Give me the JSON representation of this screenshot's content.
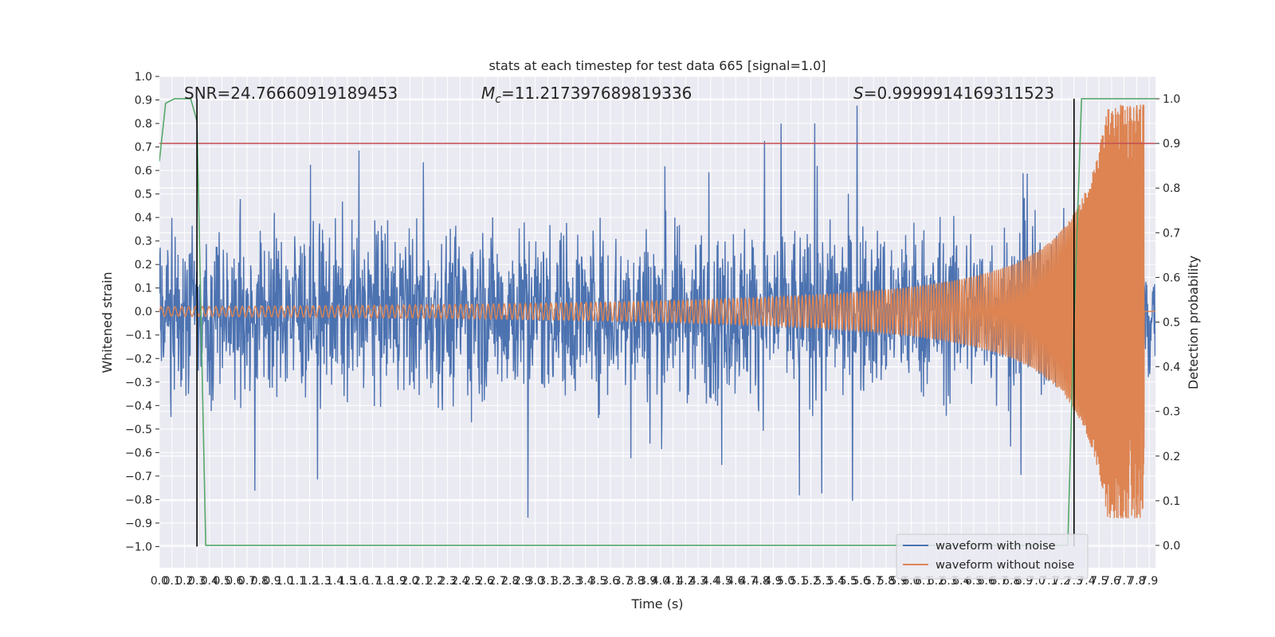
{
  "chart_data": {
    "type": "line",
    "title": "stats at each timestep for test data 665 [signal=1.0]",
    "xlabel": "Time (s)",
    "ylabel": "Whitened strain",
    "y2label": "Detection probability",
    "xlim": [
      0.0,
      7.95
    ],
    "ylim": [
      -1.09,
      1.0
    ],
    "y2lim": [
      -0.05,
      1.05
    ],
    "x_tick_step": 0.1,
    "x_tick_count": 80,
    "y_ticks": [
      "1.0",
      "0.9",
      "0.8",
      "0.7",
      "0.6",
      "0.5",
      "0.4",
      "0.3",
      "0.2",
      "0.1",
      "0.0",
      "−0.1",
      "−0.2",
      "−0.3",
      "−0.4",
      "−0.5",
      "−0.6",
      "−0.7",
      "−0.8",
      "−0.9",
      "−1.0"
    ],
    "y_tick_values": [
      1.0,
      0.9,
      0.8,
      0.7,
      0.6,
      0.5,
      0.4,
      0.3,
      0.2,
      0.1,
      0.0,
      -0.1,
      -0.2,
      -0.3,
      -0.4,
      -0.5,
      -0.6,
      -0.7,
      -0.8,
      -0.9,
      -1.0
    ],
    "y2_ticks": [
      "1.0",
      "0.9",
      "0.8",
      "0.7",
      "0.6",
      "0.5",
      "0.4",
      "0.3",
      "0.2",
      "0.1",
      "0.0"
    ],
    "y2_tick_values": [
      1.0,
      0.9,
      0.8,
      0.7,
      0.6,
      0.5,
      0.4,
      0.3,
      0.2,
      0.1,
      0.0
    ],
    "annotations": {
      "snr": "SNR=24.76660919189453",
      "mc_symbol": "M",
      "mc_sub": "c",
      "mc_value": "=11.217397689819336",
      "s_symbol": "S",
      "s_value": "=0.9999914169311523"
    },
    "series": [
      {
        "name": "waveform with noise",
        "color": "#4c72b0",
        "noise_envelope": 0.42,
        "peak_abs": 0.98
      },
      {
        "name": "waveform without noise",
        "color": "#dd8452",
        "start_amplitude": 0.02,
        "peak_amplitude": 0.88,
        "merger_time": 7.86
      }
    ],
    "detection_probability": {
      "color": "#55a868",
      "points": [
        [
          0.0,
          0.86
        ],
        [
          0.05,
          0.99
        ],
        [
          0.12,
          1.0
        ],
        [
          0.25,
          1.0
        ],
        [
          0.3,
          0.95
        ],
        [
          0.37,
          0.0
        ],
        [
          7.25,
          0.0
        ],
        [
          7.3,
          0.5
        ],
        [
          7.36,
          1.0
        ],
        [
          7.95,
          1.0
        ]
      ]
    },
    "threshold": {
      "value": 0.9,
      "axis": "y2",
      "color": "#c44e52"
    },
    "vertical_markers": {
      "x": [
        0.3,
        7.3
      ],
      "color": "#000000"
    },
    "legend_position": "lower-right",
    "grid": true
  }
}
